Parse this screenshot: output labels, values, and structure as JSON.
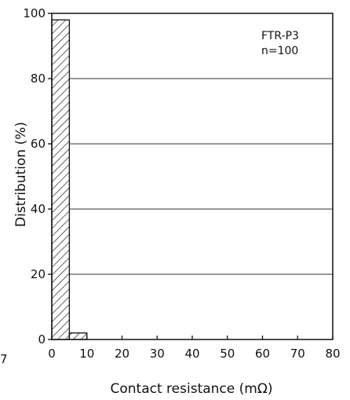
{
  "chart_data": {
    "type": "bar",
    "title": "",
    "xlabel": "Contact resistance (mΩ)",
    "ylabel": "Distribution (%)",
    "xlim": [
      0,
      80
    ],
    "ylim": [
      0,
      100
    ],
    "x_ticks": [
      0,
      10,
      20,
      30,
      40,
      50,
      60,
      70,
      80
    ],
    "y_ticks": [
      0,
      20,
      40,
      60,
      80,
      100
    ],
    "bins": [
      {
        "from": 0,
        "to": 5,
        "value": 98
      },
      {
        "from": 5,
        "to": 10,
        "value": 2
      }
    ],
    "grid": "horizontal",
    "bar_fill": "diagonal-hatch",
    "annotation": {
      "line1": "FTR-P3",
      "line2": "n=100"
    },
    "edge_label": "7"
  }
}
